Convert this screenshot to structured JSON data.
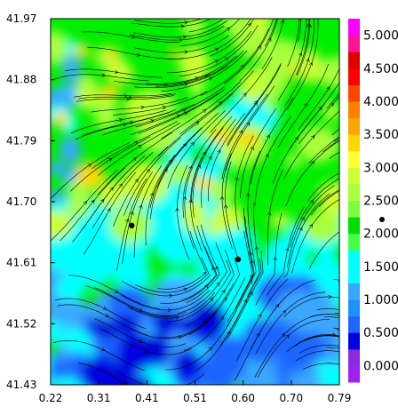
{
  "chart_data": {
    "type": "heatmap",
    "title": "",
    "xlabel": "",
    "ylabel": "",
    "x_ticks": [
      "0.22",
      "0.31",
      "0.41",
      "0.51",
      "0.60",
      "0.70",
      "0.79"
    ],
    "y_ticks": [
      "41.97",
      "41.88",
      "41.79",
      "41.70",
      "41.61",
      "41.52",
      "41.43"
    ],
    "xlim": [
      0.22,
      0.79
    ],
    "ylim": [
      41.43,
      41.97
    ],
    "colorbar": {
      "levels": [
        {
          "label": "",
          "color": "#a020f0"
        },
        {
          "label": "0.000",
          "color": "#8a2be2"
        },
        {
          "label": "",
          "color": "#0000e0"
        },
        {
          "label": "0.500",
          "color": "#1e66ff"
        },
        {
          "label": "",
          "color": "#1e90ff"
        },
        {
          "label": "1.000",
          "color": "#3aa7ff"
        },
        {
          "label": "",
          "color": "#00ffff"
        },
        {
          "label": "1.500",
          "color": "#00ffff"
        },
        {
          "label": "",
          "color": "#44ff44"
        },
        {
          "label": "2.000",
          "color": "#00e000"
        },
        {
          "label": "",
          "color": "#7cff3a"
        },
        {
          "label": "2.500",
          "color": "#a8ff3a"
        },
        {
          "label": "",
          "color": "#ccff33"
        },
        {
          "label": "3.000",
          "color": "#ffff33"
        },
        {
          "label": "",
          "color": "#ffd700"
        },
        {
          "label": "3.500",
          "color": "#ffa500"
        },
        {
          "label": "",
          "color": "#ff7f00"
        },
        {
          "label": "4.000",
          "color": "#ff4500"
        },
        {
          "label": "",
          "color": "#ff0000"
        },
        {
          "label": "4.500",
          "color": "#e00000"
        },
        {
          "label": "",
          "color": "#ff1493"
        },
        {
          "label": "5.000",
          "color": "#ff00ff"
        }
      ]
    },
    "markers": [
      {
        "x": 0.38,
        "y": 41.665
      },
      {
        "x": 0.59,
        "y": 41.615
      }
    ],
    "grid": false,
    "legend": "colorbar-right"
  }
}
